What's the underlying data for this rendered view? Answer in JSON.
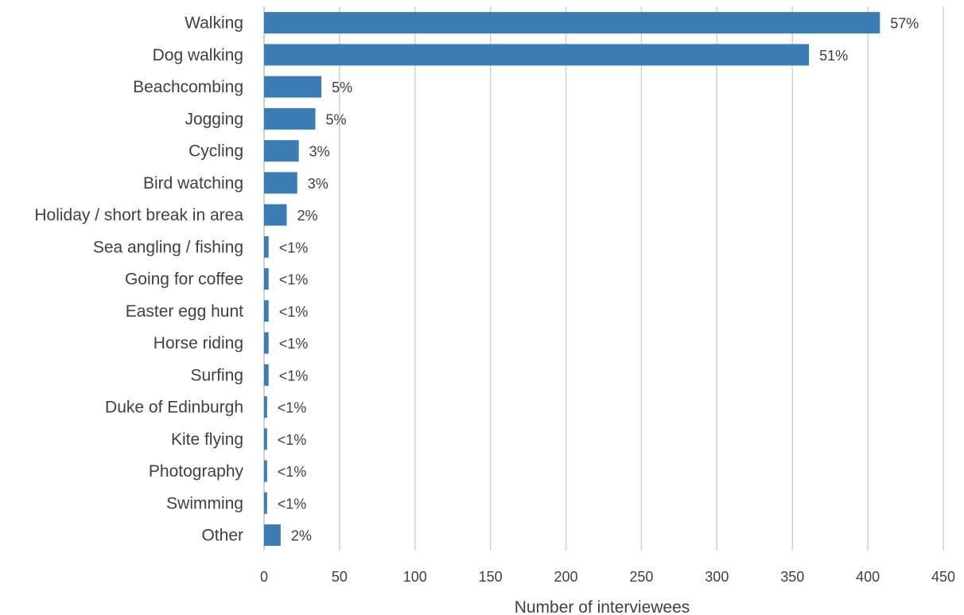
{
  "chart_data": {
    "type": "bar",
    "orientation": "horizontal",
    "title": "",
    "xlabel": "Number of interviewees",
    "ylabel": "",
    "xlim": [
      0,
      450
    ],
    "x_ticks": [
      "0",
      "50",
      "100",
      "150",
      "200",
      "250",
      "300",
      "350",
      "400",
      "450"
    ],
    "grid": "vertical",
    "legend": "none",
    "bar_color": "#3A7DB5",
    "categories": [
      "Walking",
      "Dog walking",
      "Beachcombing",
      "Jogging",
      "Cycling",
      "Bird watching",
      "Holiday / short break in area",
      "Sea angling / fishing",
      "Going for coffee",
      "Easter egg hunt",
      "Horse riding",
      "Surfing",
      "Duke of Edinburgh",
      "Kite flying",
      "Photography",
      "Swimming",
      "Other"
    ],
    "values": [
      408,
      361,
      38,
      34,
      23,
      22,
      15,
      3,
      3,
      3,
      3,
      3,
      2,
      2,
      2,
      2,
      11
    ],
    "data_labels": [
      "57%",
      "51%",
      "5%",
      "5%",
      "3%",
      "3%",
      "2%",
      "<1%",
      "<1%",
      "<1%",
      "<1%",
      "<1%",
      "<1%",
      "<1%",
      "<1%",
      "<1%",
      "2%"
    ]
  }
}
